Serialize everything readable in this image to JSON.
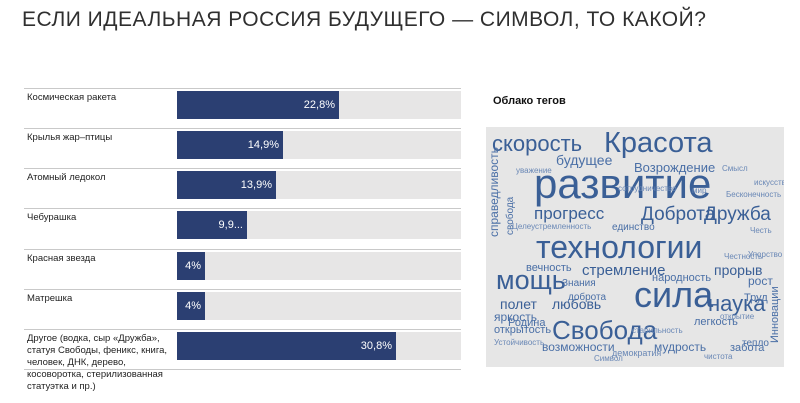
{
  "title": "ЕСЛИ ИДЕАЛЬНАЯ РОССИЯ БУДУЩЕГО — СИМВОЛ, ТО КАКОЙ?",
  "chart_data": {
    "type": "bar",
    "orientation": "horizontal",
    "categories": [
      "Космическая ракета",
      "Крылья жар–птицы",
      "Атомный ледокол",
      "Чебурашка",
      "Красная звезда",
      "Матрешка",
      "Другое (водка, сыр «Дружба», статуя Свободы, феникс, книга, человек, ДНК, дерево, косоворотка, стерилизованная статуэтка и пр.)"
    ],
    "values": [
      22.8,
      14.9,
      13.9,
      9.9,
      4,
      4,
      30.8
    ],
    "value_labels": [
      "22,8%",
      "14,9%",
      "13,9%",
      "9,9...",
      "4%",
      "4%",
      "30,8%"
    ],
    "xlim": [
      0,
      40
    ],
    "colors": {
      "bar": "#2b3f72",
      "track": "#e7e6e6"
    }
  },
  "cloud": {
    "title": "Облако тегов",
    "background": "#e6e6e6",
    "words": [
      "скорость",
      "Красота",
      "развитие",
      "будущее",
      "Возрождение",
      "прогресс",
      "Доброта",
      "Дружба",
      "технологии",
      "справедливость",
      "свобода",
      "мощь",
      "стремление",
      "прорыв",
      "сила",
      "наука",
      "Свобода",
      "вечность",
      "народность",
      "рост",
      "полет",
      "Знания",
      "Труд",
      "любовь",
      "доброта",
      "яркость",
      "открытость",
      "Родина",
      "легкость",
      "мудрость",
      "забота",
      "возможности",
      "единство",
      "Инновации",
      "тепло",
      "искусство",
      "демократия",
      "чистота",
      "Целеустремленность",
      "сотрудничество",
      "уважение",
      "стабильность",
      "Честь",
      "Устойчивость",
      "мир",
      "Смысл",
      "Упорство",
      "Честность",
      "открытие",
      "Символ",
      "Бесконечность"
    ]
  }
}
